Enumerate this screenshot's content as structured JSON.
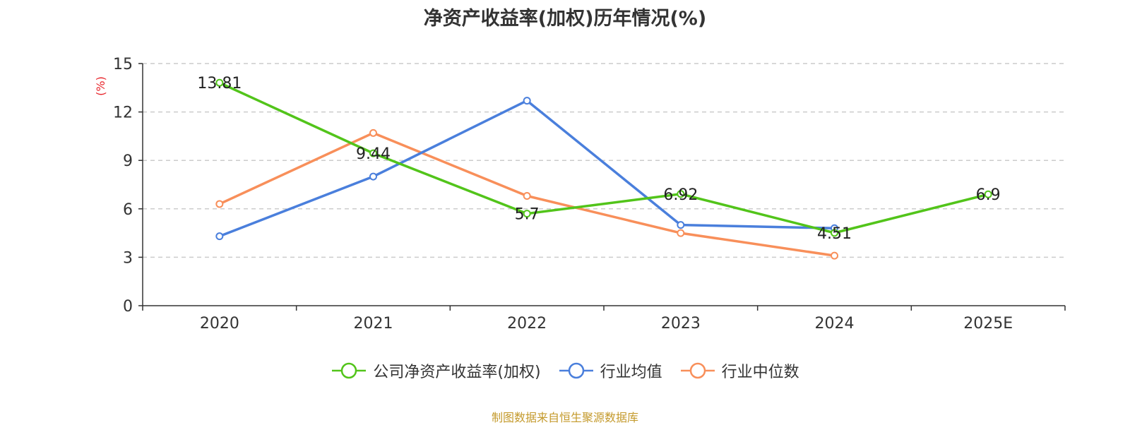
{
  "chart_data": {
    "type": "line",
    "title": "净资产收益率(加权)历年情况(%)",
    "ylabel": "(%)",
    "xlabel": "",
    "categories": [
      "2020",
      "2021",
      "2022",
      "2023",
      "2024",
      "2025E"
    ],
    "ylim": [
      0,
      15
    ],
    "yticks": [
      0,
      3,
      6,
      9,
      12,
      15
    ],
    "grid": true,
    "legend_position": "bottom-center",
    "series": [
      {
        "name": "公司净资产收益率(加权)",
        "color": "#52c41a",
        "values": [
          13.81,
          9.44,
          5.7,
          6.92,
          4.51,
          6.9
        ],
        "labels": [
          "13.81",
          "9.44",
          "5.7",
          "6.92",
          "4.51",
          "6.9"
        ]
      },
      {
        "name": "行业均值",
        "color": "#4a7fdc",
        "values": [
          4.3,
          8.0,
          12.7,
          5.0,
          4.8,
          null
        ]
      },
      {
        "name": "行业中位数",
        "color": "#f88f5a",
        "values": [
          6.3,
          10.7,
          6.8,
          4.5,
          3.1,
          null
        ]
      }
    ]
  },
  "source_note": "制图数据来自恒生聚源数据库"
}
